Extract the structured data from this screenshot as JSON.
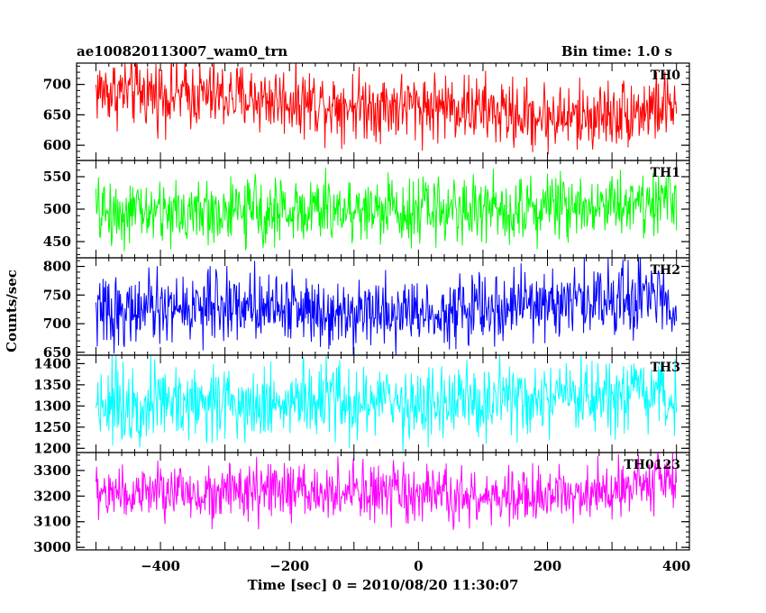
{
  "chart_data": {
    "type": "line",
    "title_left": "ae100820113007_wam0_trn",
    "title_right": "Bin time: 1.0 s",
    "xlabel": "Time [sec] 0 = 2010/08/20 11:30:07",
    "ylabel": "Counts/sec",
    "xlim": [
      -530,
      420
    ],
    "x_ticks": [
      -400,
      -200,
      0,
      200,
      400
    ],
    "x_start": -500,
    "x_end": 400,
    "bin_time": 1.0,
    "grid": false,
    "panels": [
      {
        "label": "TH0",
        "color": "#ff0000",
        "ylim": [
          575,
          735
        ],
        "y_ticks": [
          600,
          650,
          700
        ],
        "trend": [
          [
            -500,
            690
          ],
          [
            -400,
            685
          ],
          [
            -300,
            680
          ],
          [
            -150,
            670
          ],
          [
            -50,
            665
          ],
          [
            50,
            665
          ],
          [
            150,
            650
          ],
          [
            250,
            645
          ],
          [
            320,
            655
          ],
          [
            400,
            665
          ]
        ],
        "noise": 28
      },
      {
        "label": "TH1",
        "color": "#00ff00",
        "ylim": [
          425,
          575
        ],
        "y_ticks": [
          450,
          500,
          550
        ],
        "trend": [
          [
            -500,
            495
          ],
          [
            -300,
            495
          ],
          [
            -100,
            500
          ],
          [
            100,
            500
          ],
          [
            300,
            510
          ],
          [
            400,
            515
          ]
        ],
        "noise": 25
      },
      {
        "label": "TH2",
        "color": "#0000ff",
        "ylim": [
          645,
          815
        ],
        "y_ticks": [
          650,
          700,
          750,
          800
        ],
        "trend": [
          [
            -500,
            720
          ],
          [
            -400,
            725
          ],
          [
            -250,
            735
          ],
          [
            -150,
            725
          ],
          [
            0,
            720
          ],
          [
            150,
            730
          ],
          [
            300,
            745
          ],
          [
            400,
            745
          ]
        ],
        "noise": 30
      },
      {
        "label": "TH3",
        "color": "#00ffff",
        "ylim": [
          1190,
          1420
        ],
        "y_ticks": [
          1200,
          1250,
          1300,
          1350,
          1400
        ],
        "trend": [
          [
            -500,
            1310
          ],
          [
            -200,
            1310
          ],
          [
            0,
            1305
          ],
          [
            200,
            1310
          ],
          [
            400,
            1320
          ]
        ],
        "noise": 45
      },
      {
        "label": "TH0123",
        "color": "#ff00ff",
        "ylim": [
          2990,
          3370
        ],
        "y_ticks": [
          3000,
          3100,
          3200,
          3300
        ],
        "trend": [
          [
            -500,
            3210
          ],
          [
            -300,
            3215
          ],
          [
            -100,
            3215
          ],
          [
            0,
            3200
          ],
          [
            100,
            3190
          ],
          [
            200,
            3195
          ],
          [
            300,
            3240
          ],
          [
            400,
            3265
          ]
        ],
        "noise": 55
      }
    ]
  }
}
